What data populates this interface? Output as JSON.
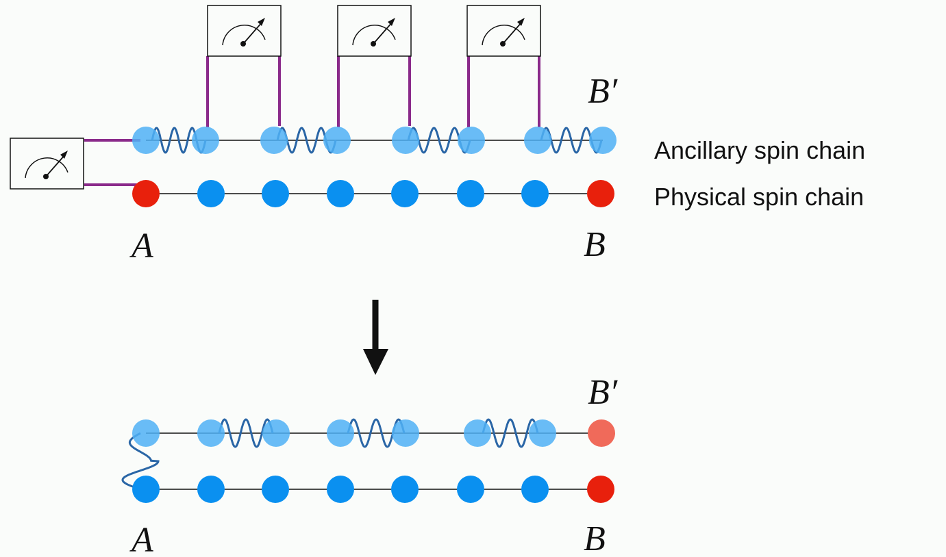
{
  "top": {
    "ancilla_label": "B′",
    "chain_labels": [
      "Ancillary spin chain",
      "Physical spin chain"
    ],
    "physical_labels": [
      "A",
      "B"
    ]
  },
  "bottom": {
    "ancilla_label": "B′",
    "physical_labels": [
      "A",
      "B"
    ]
  }
}
